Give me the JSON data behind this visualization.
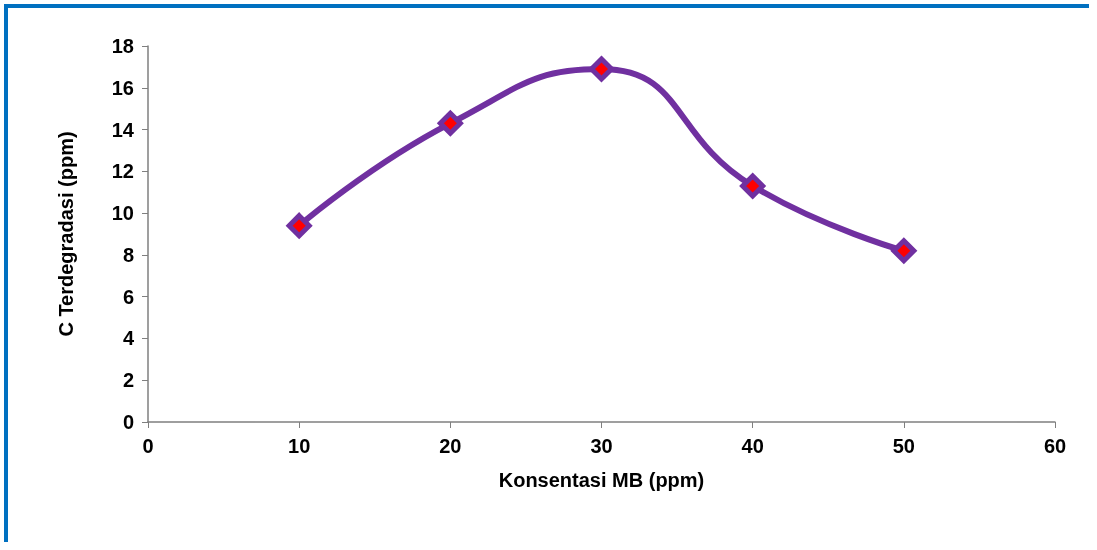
{
  "chart_data": {
    "type": "line",
    "xlabel": "Konsentasi MB (ppm)",
    "ylabel": "C Terdegradasi (ppm)",
    "x": [
      10,
      20,
      30,
      40,
      50
    ],
    "series": [
      {
        "color": "#7030a0",
        "values": [
          9.4,
          14.3,
          16.9,
          11.3,
          8.2
        ]
      }
    ],
    "xlim": [
      0,
      60
    ],
    "xticks": [
      0,
      10,
      20,
      30,
      40,
      50,
      60
    ],
    "ylim": [
      0,
      18
    ],
    "yticks": [
      0,
      2,
      4,
      6,
      8,
      10,
      12,
      14,
      16,
      18
    ],
    "grid": false,
    "marker": "diamond",
    "line_style": "solid"
  }
}
